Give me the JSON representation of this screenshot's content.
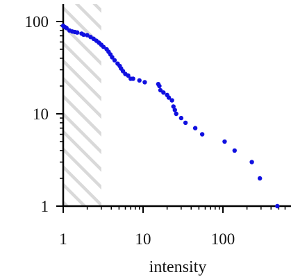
{
  "chart_data": {
    "type": "scatter",
    "title": "",
    "xlabel": "intensity",
    "ylabel": "",
    "x_scale": "log",
    "y_scale": "log",
    "xlim": [
      1,
      600
    ],
    "ylim": [
      1,
      140
    ],
    "x_ticks": [
      1,
      10,
      100
    ],
    "x_tick_labels": [
      "1",
      "10",
      "100"
    ],
    "y_ticks": [
      1,
      10,
      100
    ],
    "y_tick_labels": [
      "1",
      "10",
      "100"
    ],
    "grid": false,
    "legend": "none",
    "shaded_region": {
      "x": [
        1,
        3
      ],
      "pattern": "diagonal-hatch",
      "color": "#d9d9d9"
    },
    "point_color": "#1010e0",
    "points": [
      {
        "x": 1.0,
        "y": 90
      },
      {
        "x": 1.05,
        "y": 87
      },
      {
        "x": 1.1,
        "y": 85
      },
      {
        "x": 1.2,
        "y": 80
      },
      {
        "x": 1.3,
        "y": 78
      },
      {
        "x": 1.4,
        "y": 77
      },
      {
        "x": 1.5,
        "y": 76
      },
      {
        "x": 1.7,
        "y": 74
      },
      {
        "x": 1.8,
        "y": 72
      },
      {
        "x": 2.0,
        "y": 71
      },
      {
        "x": 2.2,
        "y": 68
      },
      {
        "x": 2.4,
        "y": 65
      },
      {
        "x": 2.6,
        "y": 62
      },
      {
        "x": 2.8,
        "y": 59
      },
      {
        "x": 3.0,
        "y": 56
      },
      {
        "x": 3.2,
        "y": 53
      },
      {
        "x": 3.5,
        "y": 50
      },
      {
        "x": 3.7,
        "y": 47
      },
      {
        "x": 3.9,
        "y": 44
      },
      {
        "x": 4.1,
        "y": 41
      },
      {
        "x": 4.4,
        "y": 38
      },
      {
        "x": 4.8,
        "y": 35
      },
      {
        "x": 5.1,
        "y": 33
      },
      {
        "x": 5.3,
        "y": 31
      },
      {
        "x": 5.6,
        "y": 29
      },
      {
        "x": 6.0,
        "y": 27
      },
      {
        "x": 6.5,
        "y": 26
      },
      {
        "x": 7.0,
        "y": 24
      },
      {
        "x": 7.5,
        "y": 24
      },
      {
        "x": 9.0,
        "y": 23
      },
      {
        "x": 10.5,
        "y": 22
      },
      {
        "x": 15.5,
        "y": 21
      },
      {
        "x": 16.0,
        "y": 20
      },
      {
        "x": 16.5,
        "y": 18
      },
      {
        "x": 18.0,
        "y": 17
      },
      {
        "x": 20.0,
        "y": 16
      },
      {
        "x": 21.0,
        "y": 15
      },
      {
        "x": 23.0,
        "y": 14
      },
      {
        "x": 24.0,
        "y": 12
      },
      {
        "x": 25.0,
        "y": 11
      },
      {
        "x": 26.0,
        "y": 10
      },
      {
        "x": 30.0,
        "y": 9
      },
      {
        "x": 34.0,
        "y": 8
      },
      {
        "x": 45.0,
        "y": 7
      },
      {
        "x": 55.0,
        "y": 6
      },
      {
        "x": 105.0,
        "y": 5
      },
      {
        "x": 140.0,
        "y": 4
      },
      {
        "x": 230.0,
        "y": 3
      },
      {
        "x": 290.0,
        "y": 2
      },
      {
        "x": 480.0,
        "y": 1
      }
    ]
  }
}
